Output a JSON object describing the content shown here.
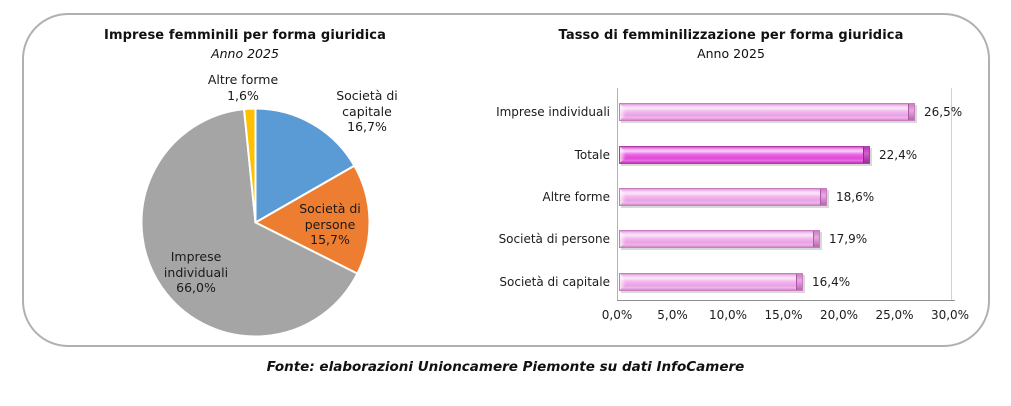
{
  "footer": "Fonte: elaborazioni Unioncamere Piemonte su dati InfoCamere",
  "pie_chart": {
    "title": "Imprese femminili per forma giuridica",
    "subtitle": "Anno 2025",
    "annotations": {
      "altre_forme": "Altre forme\n1,6%",
      "societa_capitale": "Società di\ncapitale\n16,7%",
      "societa_persone": "Società di\npersone\n15,7%",
      "imprese_individuali": "Imprese\nindividuali\n66,0%"
    }
  },
  "bar_chart": {
    "title": "Tasso di femminilizzazione per forma giuridica",
    "subtitle": "Anno 2025"
  },
  "chart_data": [
    {
      "type": "pie",
      "title": "Imprese femminili per forma giuridica",
      "subtitle": "Anno 2025",
      "start_angle_deg": 0,
      "direction": "clockwise",
      "slices": [
        {
          "key": "societa-di-capitale",
          "label": "Società di capitale",
          "value": 16.7,
          "display": "16,7%",
          "color": "#5B9BD5"
        },
        {
          "key": "societa-di-persone",
          "label": "Società di persone",
          "value": 15.7,
          "display": "15,7%",
          "color": "#ED7D31"
        },
        {
          "key": "imprese-individuali",
          "label": "Imprese individuali",
          "value": 66.0,
          "display": "66,0%",
          "color": "#A5A5A5"
        },
        {
          "key": "altre-forme",
          "label": "Altre forme",
          "value": 1.6,
          "display": "1,6%",
          "color": "#FFC000"
        }
      ]
    },
    {
      "type": "bar",
      "orientation": "horizontal",
      "title": "Tasso di femminilizzazione per forma giuridica",
      "subtitle": "Anno 2025",
      "categories": [
        "Imprese individuali",
        "Totale",
        "Altre forme",
        "Società di persone",
        "Società di capitale"
      ],
      "values": [
        26.5,
        22.4,
        18.6,
        17.9,
        16.4
      ],
      "value_labels": [
        "26,5%",
        "22,4%",
        "18,6%",
        "17,9%",
        "16,4%"
      ],
      "xlim": [
        0,
        30
      ],
      "x_ticks": [
        "0,0%",
        "5,0%",
        "10,0%",
        "15,0%",
        "20,0%",
        "25,0%",
        "30,0%"
      ],
      "grid": "right-edge-only",
      "bar_color": "#EE9FE8",
      "highlight_category": "Totale",
      "highlight_color": "#E356DE"
    }
  ]
}
